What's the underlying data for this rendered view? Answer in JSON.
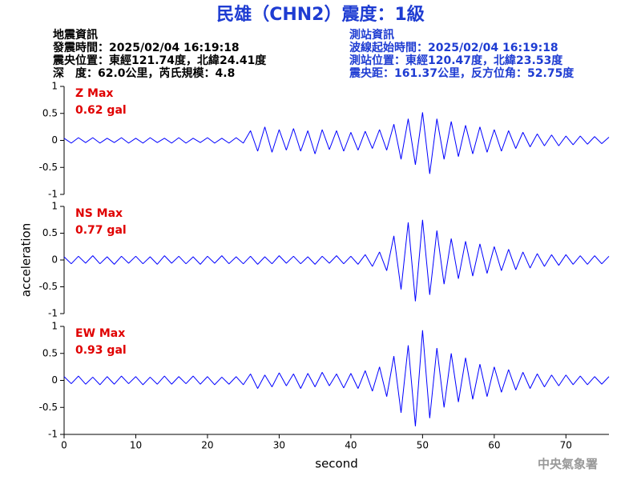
{
  "header": {
    "title": "民雄（CHN2）震度：1級",
    "left_info": [
      "地震資訊",
      "發震時間：2025/02/04 16:19:18",
      "震央位置：東經121.74度，北緯24.41度",
      "深　度：62.0公里，芮氏規模：4.8"
    ],
    "right_info": [
      "測站資訊",
      "波線起始時間：2025/02/04 16:19:18",
      "測站位置：東經120.47度，北緯23.53度",
      "震央距：161.37公里，反方位角：52.75度"
    ],
    "footer": "中央氣象署"
  },
  "chart_data": [
    {
      "type": "line",
      "label": "Z Max",
      "max_label": "0.62 gal",
      "color": "#0000ff",
      "x": [
        0,
        1,
        2,
        3,
        4,
        5,
        6,
        7,
        8,
        9,
        10,
        11,
        12,
        13,
        14,
        15,
        16,
        17,
        18,
        19,
        20,
        21,
        22,
        23,
        24,
        25,
        26,
        27,
        28,
        29,
        30,
        31,
        32,
        33,
        34,
        35,
        36,
        37,
        38,
        39,
        40,
        41,
        42,
        43,
        44,
        45,
        46,
        47,
        48,
        49,
        50,
        51,
        52,
        53,
        54,
        55,
        56,
        57,
        58,
        59,
        60,
        61,
        62,
        63,
        64,
        65,
        66,
        67,
        68,
        69,
        70,
        71,
        72,
        73,
        74,
        75,
        76
      ],
      "values": [
        0.04,
        -0.05,
        0.05,
        -0.04,
        0.05,
        -0.05,
        0.04,
        -0.04,
        0.05,
        -0.05,
        0.04,
        -0.05,
        0.05,
        -0.04,
        0.04,
        -0.05,
        0.05,
        -0.05,
        0.04,
        -0.04,
        0.05,
        -0.05,
        0.04,
        -0.05,
        0.05,
        -0.05,
        0.18,
        -0.2,
        0.25,
        -0.22,
        0.2,
        -0.18,
        0.22,
        -0.2,
        0.18,
        -0.25,
        0.2,
        -0.17,
        0.18,
        -0.2,
        0.15,
        -0.18,
        0.17,
        -0.15,
        0.2,
        -0.18,
        0.3,
        -0.35,
        0.4,
        -0.45,
        0.52,
        -0.62,
        0.4,
        -0.35,
        0.35,
        -0.3,
        0.28,
        -0.25,
        0.25,
        -0.22,
        0.2,
        -0.2,
        0.18,
        -0.15,
        0.15,
        -0.12,
        0.12,
        -0.1,
        0.1,
        -0.1,
        0.08,
        -0.08,
        0.08,
        -0.07,
        0.07,
        -0.06,
        0.06
      ],
      "xlim": [
        0,
        76
      ],
      "ylim": [
        -1,
        1
      ],
      "yticks": [
        1,
        0.5,
        0,
        -0.5,
        -1
      ]
    },
    {
      "type": "line",
      "label": "NS Max",
      "max_label": "0.77 gal",
      "color": "#0000ff",
      "ylabel": "acceleration",
      "x": [
        0,
        1,
        2,
        3,
        4,
        5,
        6,
        7,
        8,
        9,
        10,
        11,
        12,
        13,
        14,
        15,
        16,
        17,
        18,
        19,
        20,
        21,
        22,
        23,
        24,
        25,
        26,
        27,
        28,
        29,
        30,
        31,
        32,
        33,
        34,
        35,
        36,
        37,
        38,
        39,
        40,
        41,
        42,
        43,
        44,
        45,
        46,
        47,
        48,
        49,
        50,
        51,
        52,
        53,
        54,
        55,
        56,
        57,
        58,
        59,
        60,
        61,
        62,
        63,
        64,
        65,
        66,
        67,
        68,
        69,
        70,
        71,
        72,
        73,
        74,
        75,
        76
      ],
      "values": [
        0.06,
        -0.07,
        0.07,
        -0.06,
        0.08,
        -0.07,
        0.06,
        -0.08,
        0.07,
        -0.06,
        0.07,
        -0.07,
        0.06,
        -0.08,
        0.08,
        -0.06,
        0.07,
        -0.07,
        0.06,
        -0.08,
        0.07,
        -0.06,
        0.08,
        -0.07,
        0.06,
        -0.07,
        0.07,
        -0.08,
        0.06,
        -0.07,
        0.08,
        -0.06,
        0.07,
        -0.07,
        0.06,
        -0.08,
        0.07,
        -0.06,
        0.08,
        -0.07,
        0.07,
        -0.08,
        0.1,
        -0.12,
        0.15,
        -0.2,
        0.45,
        -0.55,
        0.7,
        -0.77,
        0.75,
        -0.65,
        0.55,
        -0.45,
        0.4,
        -0.35,
        0.35,
        -0.3,
        0.3,
        -0.25,
        0.25,
        -0.2,
        0.2,
        -0.18,
        0.15,
        -0.15,
        0.12,
        -0.12,
        0.1,
        -0.1,
        0.1,
        -0.08,
        0.08,
        -0.08,
        0.08,
        -0.07,
        0.07
      ],
      "xlim": [
        0,
        76
      ],
      "ylim": [
        -1,
        1
      ],
      "yticks": [
        1,
        0.5,
        0,
        -0.5,
        -1
      ]
    },
    {
      "type": "line",
      "label": "EW Max",
      "max_label": "0.93 gal",
      "color": "#0000ff",
      "xlabel": "second",
      "x": [
        0,
        1,
        2,
        3,
        4,
        5,
        6,
        7,
        8,
        9,
        10,
        11,
        12,
        13,
        14,
        15,
        16,
        17,
        18,
        19,
        20,
        21,
        22,
        23,
        24,
        25,
        26,
        27,
        28,
        29,
        30,
        31,
        32,
        33,
        34,
        35,
        36,
        37,
        38,
        39,
        40,
        41,
        42,
        43,
        44,
        45,
        46,
        47,
        48,
        49,
        50,
        51,
        52,
        53,
        54,
        55,
        56,
        57,
        58,
        59,
        60,
        61,
        62,
        63,
        64,
        65,
        66,
        67,
        68,
        69,
        70,
        71,
        72,
        73,
        74,
        75,
        76
      ],
      "values": [
        0.07,
        -0.06,
        0.08,
        -0.07,
        0.06,
        -0.08,
        0.07,
        -0.07,
        0.08,
        -0.06,
        0.07,
        -0.08,
        0.06,
        -0.07,
        0.08,
        -0.07,
        0.07,
        -0.06,
        0.08,
        -0.07,
        0.07,
        -0.08,
        0.06,
        -0.07,
        0.07,
        -0.08,
        0.12,
        -0.15,
        0.1,
        -0.12,
        0.14,
        -0.1,
        0.12,
        -0.15,
        0.13,
        -0.12,
        0.15,
        -0.1,
        0.12,
        -0.14,
        0.13,
        -0.15,
        0.18,
        -0.2,
        0.25,
        -0.3,
        0.45,
        -0.6,
        0.65,
        -0.85,
        0.93,
        -0.7,
        0.6,
        -0.5,
        0.5,
        -0.4,
        0.42,
        -0.35,
        0.3,
        -0.3,
        0.25,
        -0.22,
        0.2,
        -0.18,
        0.15,
        -0.15,
        0.12,
        -0.12,
        0.1,
        -0.1,
        0.1,
        -0.08,
        0.08,
        -0.08,
        0.07,
        -0.07,
        0.07
      ],
      "xlim": [
        0,
        76
      ],
      "ylim": [
        -1,
        1
      ],
      "yticks": [
        1,
        0.5,
        0,
        -0.5,
        -1
      ],
      "xticks": [
        0,
        10,
        20,
        30,
        40,
        50,
        60,
        70
      ]
    }
  ]
}
